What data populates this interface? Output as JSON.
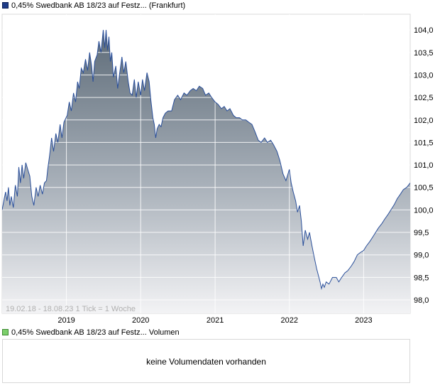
{
  "legend": {
    "price_label": "0,45% Swedbank AB 18/23 auf Festz... (Frankfurt)",
    "volume_label": "0,45% Swedbank AB 18/23 auf Festz... Volumen"
  },
  "range_text": "19.02.18 - 18.08.23   1 Tick = 1 Woche",
  "volume": {
    "message": "keine Volumendaten vorhanden"
  },
  "colors": {
    "line": "#2a4f9a",
    "fill_top": "#5d6b78",
    "fill_bottom": "#f3f3f5",
    "grid": "#ffffff",
    "plot_bg": "#ffffff"
  },
  "chart_data": {
    "type": "area",
    "title": "",
    "xlabel": "",
    "ylabel": "",
    "ylim": [
      97.7,
      104.35
    ],
    "yticks": [
      "98,0",
      "98,5",
      "99,0",
      "99,5",
      "100,0",
      "100,5",
      "101,0",
      "101,5",
      "102,0",
      "102,5",
      "103,0",
      "103,5",
      "104,0"
    ],
    "xticks": [
      "2019",
      "2020",
      "2021",
      "2022",
      "2023"
    ],
    "grid": true,
    "series": [
      {
        "values": [
          [
            "2018-02-19",
            100.0
          ],
          [
            "2018-03-01",
            100.25
          ],
          [
            "2018-03-08",
            100.4
          ],
          [
            "2018-03-15",
            100.2
          ],
          [
            "2018-03-22",
            100.5
          ],
          [
            "2018-03-29",
            100.1
          ],
          [
            "2018-04-05",
            100.3
          ],
          [
            "2018-04-15",
            100.05
          ],
          [
            "2018-04-25",
            100.55
          ],
          [
            "2018-05-05",
            100.3
          ],
          [
            "2018-05-12",
            100.95
          ],
          [
            "2018-05-20",
            100.6
          ],
          [
            "2018-05-28",
            101.0
          ],
          [
            "2018-06-05",
            100.7
          ],
          [
            "2018-06-15",
            101.05
          ],
          [
            "2018-06-25",
            100.9
          ],
          [
            "2018-07-05",
            100.75
          ],
          [
            "2018-07-15",
            100.3
          ],
          [
            "2018-07-25",
            100.1
          ],
          [
            "2018-08-05",
            100.5
          ],
          [
            "2018-08-15",
            100.3
          ],
          [
            "2018-08-25",
            100.55
          ],
          [
            "2018-09-05",
            100.35
          ],
          [
            "2018-09-15",
            100.6
          ],
          [
            "2018-09-25",
            100.65
          ],
          [
            "2018-10-01",
            100.9
          ],
          [
            "2018-10-10",
            101.2
          ],
          [
            "2018-10-20",
            101.6
          ],
          [
            "2018-10-30",
            101.3
          ],
          [
            "2018-11-10",
            101.7
          ],
          [
            "2018-11-20",
            101.5
          ],
          [
            "2018-12-01",
            101.9
          ],
          [
            "2018-12-10",
            101.6
          ],
          [
            "2018-12-20",
            101.95
          ],
          [
            "2019-01-05",
            102.1
          ],
          [
            "2019-01-15",
            102.4
          ],
          [
            "2019-01-25",
            102.2
          ],
          [
            "2019-02-05",
            102.6
          ],
          [
            "2019-02-15",
            102.4
          ],
          [
            "2019-02-25",
            102.85
          ],
          [
            "2019-03-05",
            102.7
          ],
          [
            "2019-03-15",
            103.15
          ],
          [
            "2019-03-25",
            103.05
          ],
          [
            "2019-04-05",
            103.35
          ],
          [
            "2019-04-15",
            103.1
          ],
          [
            "2019-04-25",
            103.5
          ],
          [
            "2019-05-05",
            103.2
          ],
          [
            "2019-05-12",
            102.85
          ],
          [
            "2019-05-20",
            103.3
          ],
          [
            "2019-06-01",
            103.45
          ],
          [
            "2019-06-10",
            103.75
          ],
          [
            "2019-06-20",
            103.5
          ],
          [
            "2019-07-01",
            104.0
          ],
          [
            "2019-07-08",
            103.6
          ],
          [
            "2019-07-15",
            104.0
          ],
          [
            "2019-07-22",
            103.55
          ],
          [
            "2019-07-29",
            103.85
          ],
          [
            "2019-08-05",
            103.3
          ],
          [
            "2019-08-12",
            103.5
          ],
          [
            "2019-08-20",
            102.95
          ],
          [
            "2019-09-01",
            103.2
          ],
          [
            "2019-09-10",
            102.7
          ],
          [
            "2019-09-20",
            103.05
          ],
          [
            "2019-10-01",
            103.4
          ],
          [
            "2019-10-10",
            103.05
          ],
          [
            "2019-10-20",
            103.3
          ],
          [
            "2019-11-01",
            102.85
          ],
          [
            "2019-11-10",
            102.6
          ],
          [
            "2019-11-20",
            102.55
          ],
          [
            "2019-12-01",
            102.9
          ],
          [
            "2019-12-10",
            102.5
          ],
          [
            "2019-12-20",
            102.85
          ],
          [
            "2020-01-01",
            102.55
          ],
          [
            "2020-01-10",
            102.9
          ],
          [
            "2020-01-20",
            102.65
          ],
          [
            "2020-02-01",
            103.05
          ],
          [
            "2020-02-12",
            102.85
          ],
          [
            "2020-02-20",
            102.45
          ],
          [
            "2020-03-01",
            102.05
          ],
          [
            "2020-03-08",
            101.9
          ],
          [
            "2020-03-15",
            101.6
          ],
          [
            "2020-03-22",
            101.8
          ],
          [
            "2020-04-01",
            101.9
          ],
          [
            "2020-04-10",
            101.85
          ],
          [
            "2020-04-20",
            102.05
          ],
          [
            "2020-05-01",
            102.15
          ],
          [
            "2020-05-15",
            102.2
          ],
          [
            "2020-06-01",
            102.2
          ],
          [
            "2020-06-15",
            102.45
          ],
          [
            "2020-07-01",
            102.55
          ],
          [
            "2020-07-15",
            102.45
          ],
          [
            "2020-08-01",
            102.6
          ],
          [
            "2020-08-15",
            102.55
          ],
          [
            "2020-09-01",
            102.65
          ],
          [
            "2020-09-15",
            102.7
          ],
          [
            "2020-10-01",
            102.65
          ],
          [
            "2020-10-15",
            102.75
          ],
          [
            "2020-11-01",
            102.7
          ],
          [
            "2020-11-15",
            102.55
          ],
          [
            "2020-12-01",
            102.6
          ],
          [
            "2020-12-15",
            102.5
          ],
          [
            "2021-01-01",
            102.4
          ],
          [
            "2021-01-15",
            102.35
          ],
          [
            "2021-02-01",
            102.25
          ],
          [
            "2021-02-15",
            102.3
          ],
          [
            "2021-03-01",
            102.2
          ],
          [
            "2021-03-15",
            102.25
          ],
          [
            "2021-04-01",
            102.1
          ],
          [
            "2021-04-15",
            102.05
          ],
          [
            "2021-05-01",
            102.05
          ],
          [
            "2021-05-15",
            102.0
          ],
          [
            "2021-06-01",
            102.0
          ],
          [
            "2021-06-15",
            101.95
          ],
          [
            "2021-07-01",
            101.9
          ],
          [
            "2021-07-15",
            101.75
          ],
          [
            "2021-08-01",
            101.55
          ],
          [
            "2021-08-15",
            101.5
          ],
          [
            "2021-09-01",
            101.6
          ],
          [
            "2021-09-15",
            101.5
          ],
          [
            "2021-10-01",
            101.55
          ],
          [
            "2021-10-15",
            101.45
          ],
          [
            "2021-11-01",
            101.3
          ],
          [
            "2021-11-15",
            101.1
          ],
          [
            "2021-12-01",
            100.8
          ],
          [
            "2021-12-15",
            100.65
          ],
          [
            "2022-01-01",
            100.9
          ],
          [
            "2022-01-10",
            100.6
          ],
          [
            "2022-01-20",
            100.4
          ],
          [
            "2022-02-01",
            100.2
          ],
          [
            "2022-02-10",
            99.95
          ],
          [
            "2022-02-20",
            100.1
          ],
          [
            "2022-03-01",
            99.75
          ],
          [
            "2022-03-10",
            99.2
          ],
          [
            "2022-03-20",
            99.55
          ],
          [
            "2022-04-01",
            99.35
          ],
          [
            "2022-04-10",
            99.5
          ],
          [
            "2022-04-20",
            99.25
          ],
          [
            "2022-05-01",
            99.0
          ],
          [
            "2022-05-15",
            98.7
          ],
          [
            "2022-06-01",
            98.4
          ],
          [
            "2022-06-08",
            98.25
          ],
          [
            "2022-06-15",
            98.35
          ],
          [
            "2022-06-22",
            98.28
          ],
          [
            "2022-07-01",
            98.4
          ],
          [
            "2022-07-15",
            98.35
          ],
          [
            "2022-08-01",
            98.5
          ],
          [
            "2022-08-20",
            98.5
          ],
          [
            "2022-09-01",
            98.4
          ],
          [
            "2022-09-15",
            98.5
          ],
          [
            "2022-10-01",
            98.6
          ],
          [
            "2022-10-15",
            98.65
          ],
          [
            "2022-11-01",
            98.75
          ],
          [
            "2022-11-15",
            98.85
          ],
          [
            "2022-12-01",
            99.0
          ],
          [
            "2022-12-15",
            99.05
          ],
          [
            "2023-01-01",
            99.1
          ],
          [
            "2023-01-15",
            99.2
          ],
          [
            "2023-02-01",
            99.3
          ],
          [
            "2023-02-15",
            99.4
          ],
          [
            "2023-03-01",
            99.5
          ],
          [
            "2023-03-15",
            99.6
          ],
          [
            "2023-04-01",
            99.7
          ],
          [
            "2023-04-15",
            99.8
          ],
          [
            "2023-05-01",
            99.9
          ],
          [
            "2023-05-15",
            100.0
          ],
          [
            "2023-06-01",
            100.12
          ],
          [
            "2023-06-15",
            100.25
          ],
          [
            "2023-07-01",
            100.35
          ],
          [
            "2023-07-15",
            100.45
          ],
          [
            "2023-08-01",
            100.5
          ],
          [
            "2023-08-18",
            100.6
          ]
        ]
      }
    ]
  }
}
